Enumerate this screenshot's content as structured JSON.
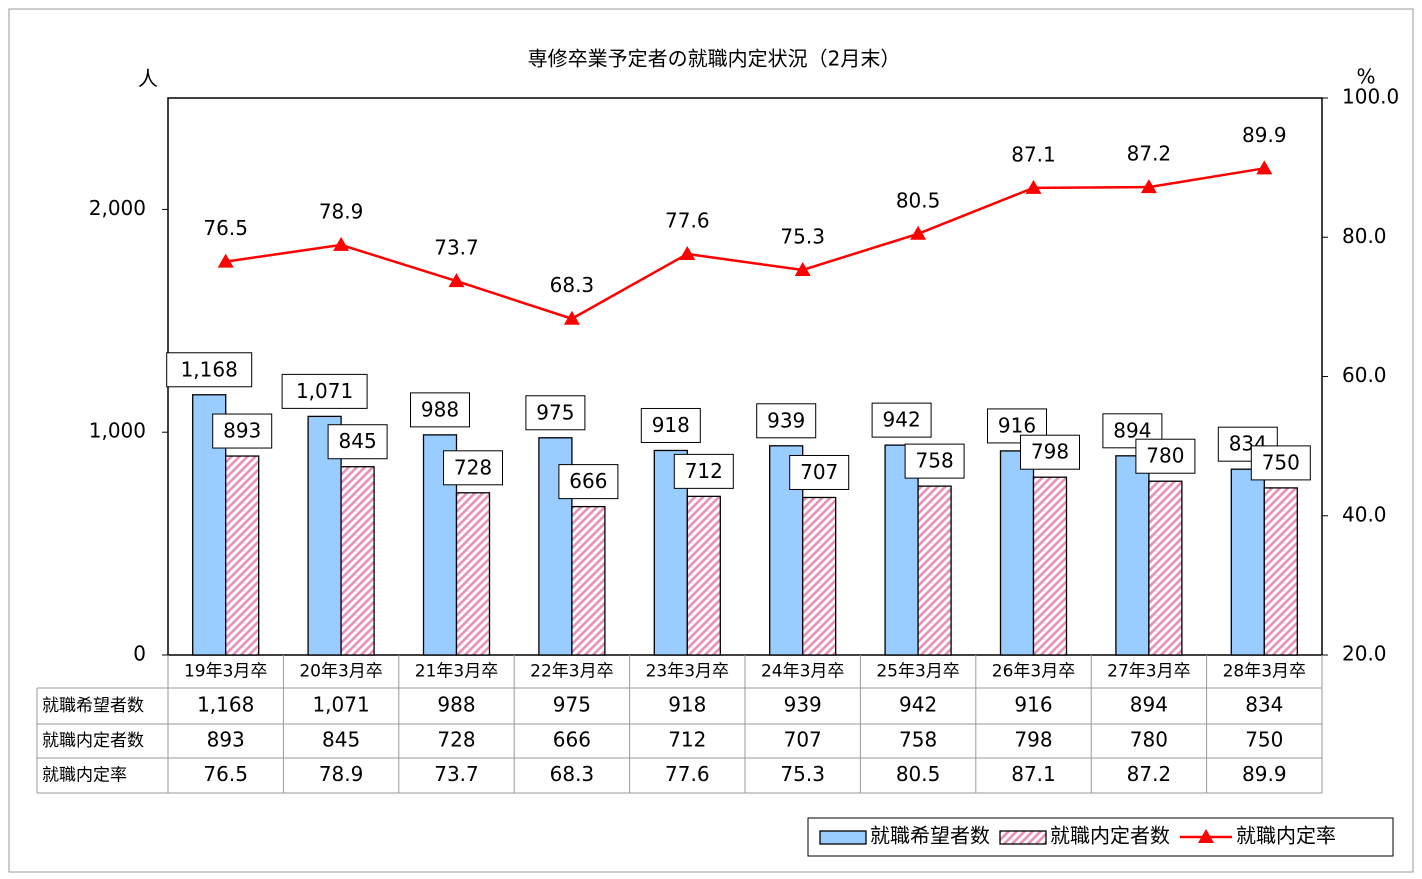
{
  "chart_data": {
    "type": "bar-line",
    "title": "専修卒業予定者の就職内定状況（2月末）",
    "y_axis_label": "人",
    "y2_axis_label": "%",
    "categories": [
      "19年3月卒",
      "20年3月卒",
      "21年3月卒",
      "22年3月卒",
      "23年3月卒",
      "24年3月卒",
      "25年3月卒",
      "26年3月卒",
      "27年3月卒",
      "28年3月卒"
    ],
    "series": [
      {
        "name": "就職希望者数",
        "type": "bar",
        "color": "#99ccff",
        "values": [
          1168,
          1071,
          988,
          975,
          918,
          939,
          942,
          916,
          894,
          834
        ],
        "value_labels": [
          "1,168",
          "1,071",
          "988",
          "975",
          "918",
          "939",
          "942",
          "916",
          "894",
          "834"
        ]
      },
      {
        "name": "就職内定者数",
        "type": "bar",
        "color": "#e890b8",
        "hatch": true,
        "values": [
          893,
          845,
          728,
          666,
          712,
          707,
          758,
          798,
          780,
          750
        ]
      },
      {
        "name": "就職内定率",
        "type": "line",
        "axis": "y2",
        "color": "#ff0000",
        "marker": "triangle",
        "values": [
          76.5,
          78.9,
          73.7,
          68.3,
          77.6,
          75.3,
          80.5,
          87.1,
          87.2,
          89.9
        ]
      }
    ],
    "ylim": [
      0,
      2500
    ],
    "yticks": [
      0,
      {
        "value": 1000,
        "label": "1,000"
      },
      {
        "value": 2000,
        "label": "2,000"
      }
    ],
    "y2lim": [
      20,
      100
    ],
    "y2ticks": [
      {
        "value": 20,
        "label": "20.0"
      },
      {
        "value": 40,
        "label": "40.0"
      },
      {
        "value": 60,
        "label": "60.0"
      },
      {
        "value": 80,
        "label": "80.0"
      },
      {
        "value": 100,
        "label": "100.0"
      }
    ],
    "grid": false,
    "data_table": true,
    "legend": "bottom-right"
  }
}
